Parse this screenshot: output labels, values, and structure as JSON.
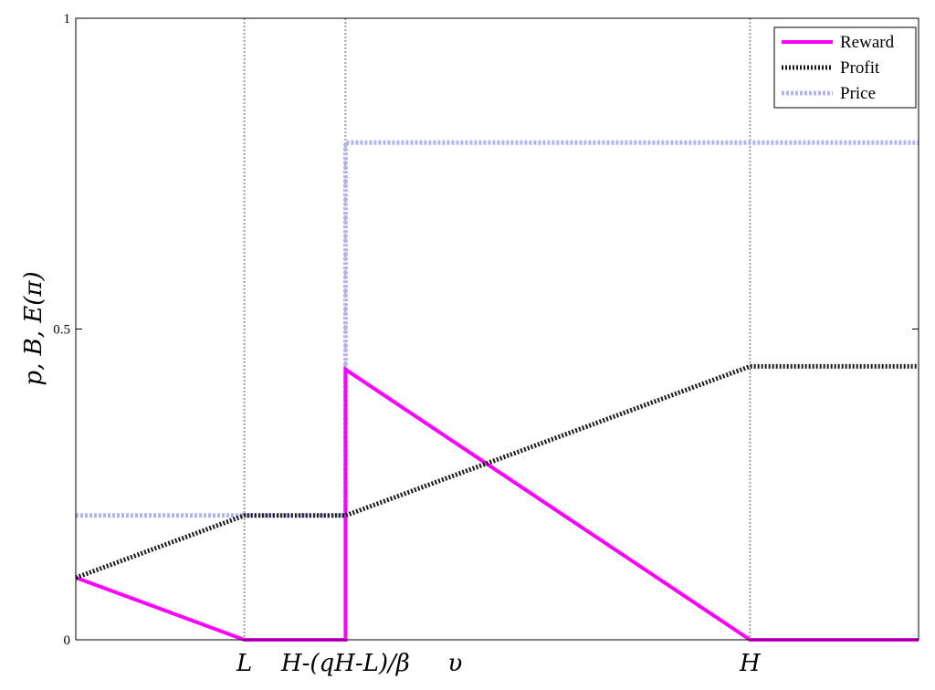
{
  "chart_data": {
    "type": "line",
    "title": "",
    "xlabel": "",
    "ylabel": "p, B, E(π)",
    "xlim": [
      0,
      10
    ],
    "ylim": [
      0,
      1
    ],
    "y_ticks": [
      {
        "value": 0,
        "label": "0"
      },
      {
        "value": 0.5,
        "label": "0.5"
      },
      {
        "value": 1,
        "label": "1"
      }
    ],
    "x_ticks": [
      {
        "value": 2,
        "label": "L"
      },
      {
        "value": 3.2,
        "label": "H-(qH-L)/β"
      },
      {
        "value": 4.5,
        "label": "υ"
      },
      {
        "value": 8,
        "label": "H"
      }
    ],
    "vertical_gridlines_at": [
      2,
      3.2,
      8
    ],
    "grid": false,
    "legend_position": "top-right",
    "series": [
      {
        "name": "Reward",
        "color": "#ff00ff",
        "style": "solid",
        "x": [
          0,
          2,
          3.2,
          3.2,
          8,
          10
        ],
        "y": [
          0.1,
          0,
          0,
          0.435,
          0,
          0
        ]
      },
      {
        "name": "Profit",
        "color": "#1a1a1a",
        "style": "dotted",
        "x": [
          0,
          2,
          3.2,
          8,
          10
        ],
        "y": [
          0.1,
          0.2,
          0.2,
          0.44,
          0.44
        ]
      },
      {
        "name": "Price",
        "color": "#b3b3f2",
        "style": "dotted",
        "x": [
          0,
          2,
          3.2,
          3.2,
          10
        ],
        "y": [
          0.2,
          0.2,
          0.2,
          0.8,
          0.8
        ]
      }
    ]
  }
}
